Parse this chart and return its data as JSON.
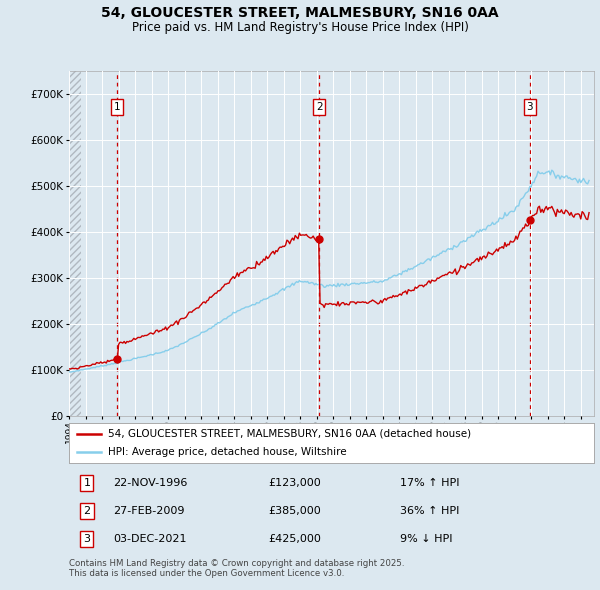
{
  "title_line1": "54, GLOUCESTER STREET, MALMESBURY, SN16 0AA",
  "title_line2": "Price paid vs. HM Land Registry's House Price Index (HPI)",
  "background_color": "#dce8f0",
  "hpi_color": "#87CEEB",
  "price_color": "#cc0000",
  "sale_dates": [
    1996.896,
    2009.163,
    2021.92
  ],
  "sale_prices": [
    123000,
    385000,
    425000
  ],
  "vline_color": "#cc0000",
  "xmin": 1994,
  "xmax": 2025.8,
  "ymin": 0,
  "ymax": 750000,
  "yticks": [
    0,
    100000,
    200000,
    300000,
    400000,
    500000,
    600000,
    700000
  ],
  "ytick_labels": [
    "£0",
    "£100K",
    "£200K",
    "£300K",
    "£400K",
    "£500K",
    "£600K",
    "£700K"
  ],
  "legend_label_price": "54, GLOUCESTER STREET, MALMESBURY, SN16 0AA (detached house)",
  "legend_label_hpi": "HPI: Average price, detached house, Wiltshire",
  "annotation1_date": "22-NOV-1996",
  "annotation1_price": "£123,000",
  "annotation1_change": "17% ↑ HPI",
  "annotation2_date": "27-FEB-2009",
  "annotation2_price": "£385,000",
  "annotation2_change": "36% ↑ HPI",
  "annotation3_date": "03-DEC-2021",
  "annotation3_price": "£425,000",
  "annotation3_change": "9% ↓ HPI",
  "footer": "Contains HM Land Registry data © Crown copyright and database right 2025.\nThis data is licensed under the Open Government Licence v3.0."
}
